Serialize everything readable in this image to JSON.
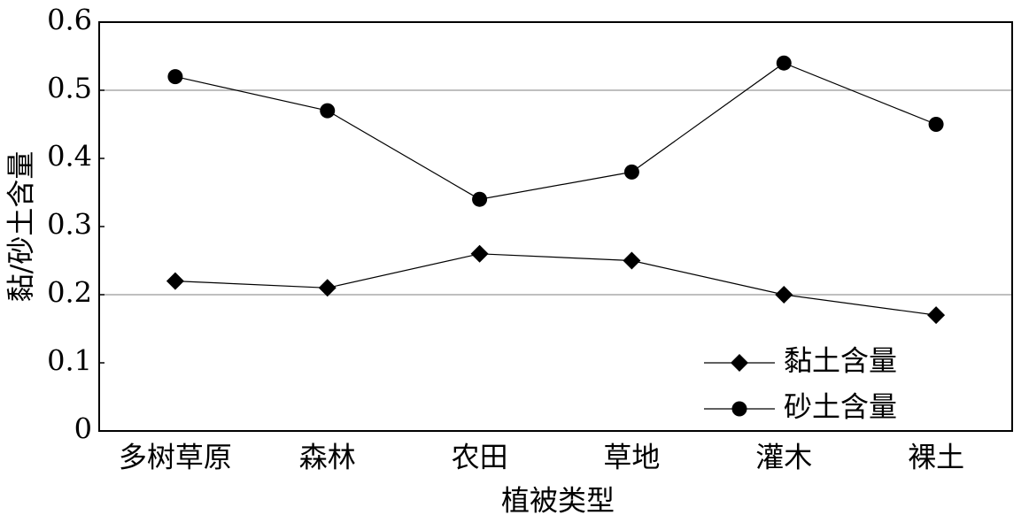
{
  "chart_data": {
    "type": "line",
    "x_label": "植被类型",
    "y_label": "黏/砂土含量",
    "categories": [
      "多树草原",
      "森林",
      "农田",
      "草地",
      "灌木",
      "裸土"
    ],
    "series": [
      {
        "name": "黏土含量",
        "color": "#000000",
        "marker": "diamond",
        "values": [
          0.22,
          0.21,
          0.26,
          0.25,
          0.2,
          0.17
        ]
      },
      {
        "name": "砂土含量",
        "color": "#000000",
        "marker": "circle",
        "values": [
          0.52,
          0.47,
          0.34,
          0.38,
          0.54,
          0.45
        ]
      }
    ],
    "ylim": [
      0,
      0.6
    ],
    "yticks": [
      0,
      0.1,
      0.2,
      0.3,
      0.4,
      0.5,
      0.6
    ],
    "ygrid": [
      0.2,
      0.5
    ],
    "legend": "lower right"
  }
}
